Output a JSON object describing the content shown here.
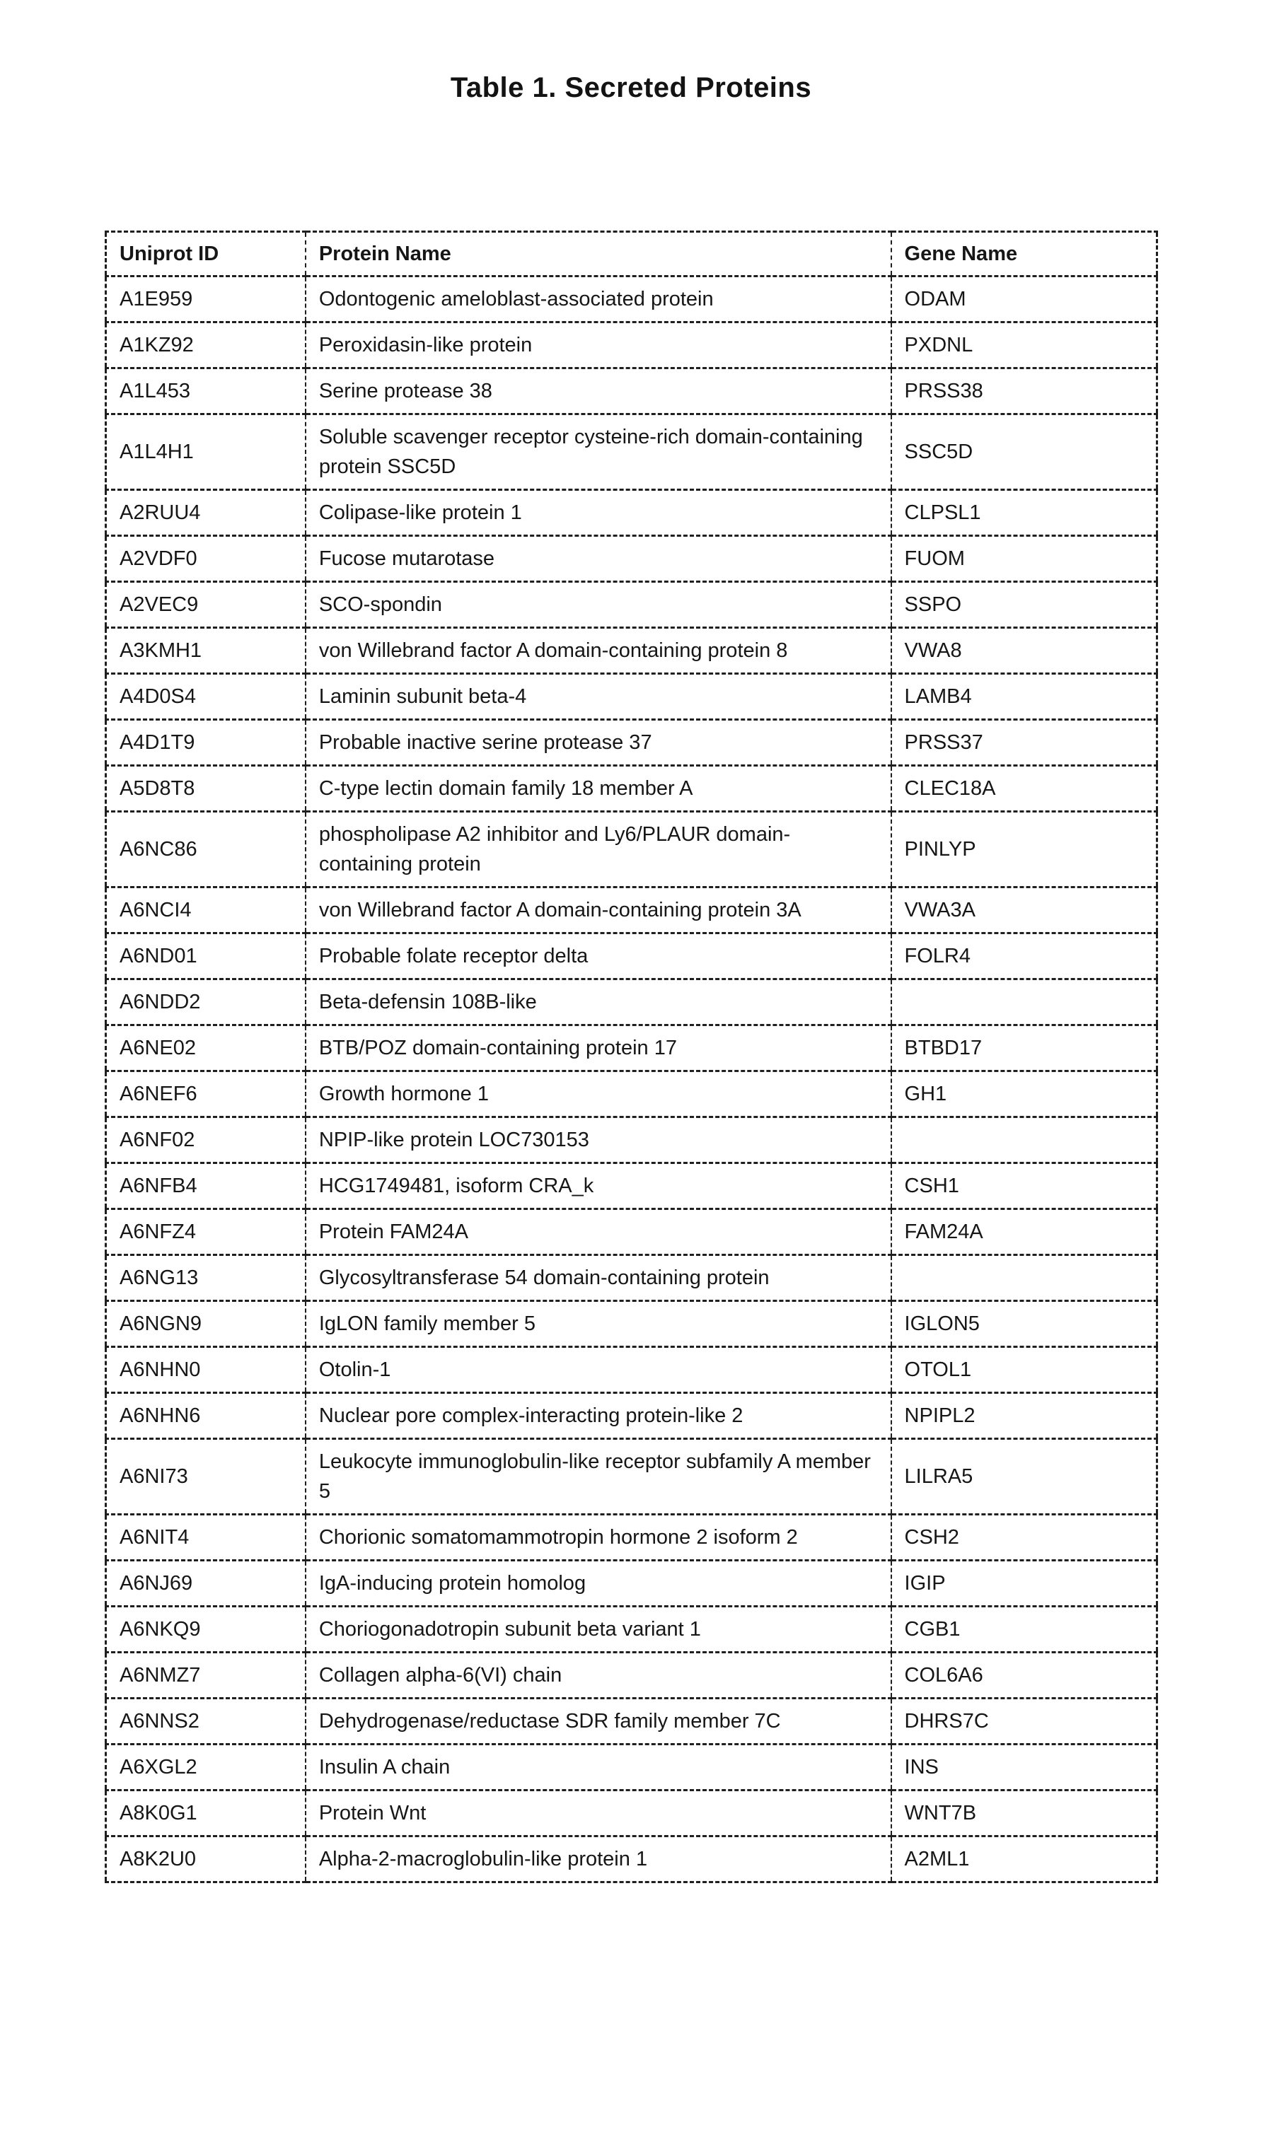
{
  "page": {
    "title": "Table 1.  Secreted Proteins"
  },
  "table": {
    "columns": [
      "Uniprot ID",
      "Protein Name",
      "Gene Name"
    ],
    "rows": [
      [
        "A1E959",
        "Odontogenic ameloblast-associated protein",
        "ODAM"
      ],
      [
        "A1KZ92",
        "Peroxidasin-like protein",
        "PXDNL"
      ],
      [
        "A1L453",
        "Serine protease 38",
        "PRSS38"
      ],
      [
        "A1L4H1",
        "Soluble scavenger receptor cysteine-rich domain-containing protein SSC5D",
        "SSC5D"
      ],
      [
        "A2RUU4",
        "Colipase-like protein 1",
        "CLPSL1"
      ],
      [
        "A2VDF0",
        "Fucose mutarotase",
        "FUOM"
      ],
      [
        "A2VEC9",
        "SCO-spondin",
        "SSPO"
      ],
      [
        "A3KMH1",
        "von Willebrand factor A domain-containing protein 8",
        "VWA8"
      ],
      [
        "A4D0S4",
        "Laminin subunit beta-4",
        "LAMB4"
      ],
      [
        "A4D1T9",
        "Probable inactive serine protease 37",
        "PRSS37"
      ],
      [
        "A5D8T8",
        "C-type lectin domain family 18 member A",
        "CLEC18A"
      ],
      [
        "A6NC86",
        "phospholipase A2 inhibitor and Ly6/PLAUR domain-containing protein",
        "PINLYP"
      ],
      [
        "A6NCI4",
        "von Willebrand factor A domain-containing protein 3A",
        "VWA3A"
      ],
      [
        "A6ND01",
        "Probable folate receptor delta",
        "FOLR4"
      ],
      [
        "A6NDD2",
        "Beta-defensin 108B-like",
        ""
      ],
      [
        "A6NE02",
        "BTB/POZ domain-containing protein 17",
        "BTBD17"
      ],
      [
        "A6NEF6",
        "Growth hormone 1",
        "GH1"
      ],
      [
        "A6NF02",
        "NPIP-like protein LOC730153",
        ""
      ],
      [
        "A6NFB4",
        "HCG1749481, isoform CRA_k",
        "CSH1"
      ],
      [
        "A6NFZ4",
        "Protein FAM24A",
        "FAM24A"
      ],
      [
        "A6NG13",
        "Glycosyltransferase 54 domain-containing protein",
        ""
      ],
      [
        "A6NGN9",
        "IgLON family member 5",
        "IGLON5"
      ],
      [
        "A6NHN0",
        "Otolin-1",
        "OTOL1"
      ],
      [
        "A6NHN6",
        "Nuclear pore complex-interacting protein-like 2",
        "NPIPL2"
      ],
      [
        "A6NI73",
        "Leukocyte immunoglobulin-like receptor subfamily A member 5",
        "LILRA5"
      ],
      [
        "A6NIT4",
        "Chorionic somatomammotropin hormone 2 isoform 2",
        "CSH2"
      ],
      [
        "A6NJ69",
        "IgA-inducing protein homolog",
        "IGIP"
      ],
      [
        "A6NKQ9",
        "Choriogonadotropin subunit beta variant 1",
        "CGB1"
      ],
      [
        "A6NMZ7",
        "Collagen alpha-6(VI) chain",
        "COL6A6"
      ],
      [
        "A6NNS2",
        "Dehydrogenase/reductase SDR family member 7C",
        "DHRS7C"
      ],
      [
        "A6XGL2",
        "Insulin A chain",
        "INS"
      ],
      [
        "A8K0G1",
        "Protein Wnt",
        "WNT7B"
      ],
      [
        "A8K2U0",
        "Alpha-2-macroglobulin-like protein 1",
        "A2ML1"
      ]
    ]
  }
}
